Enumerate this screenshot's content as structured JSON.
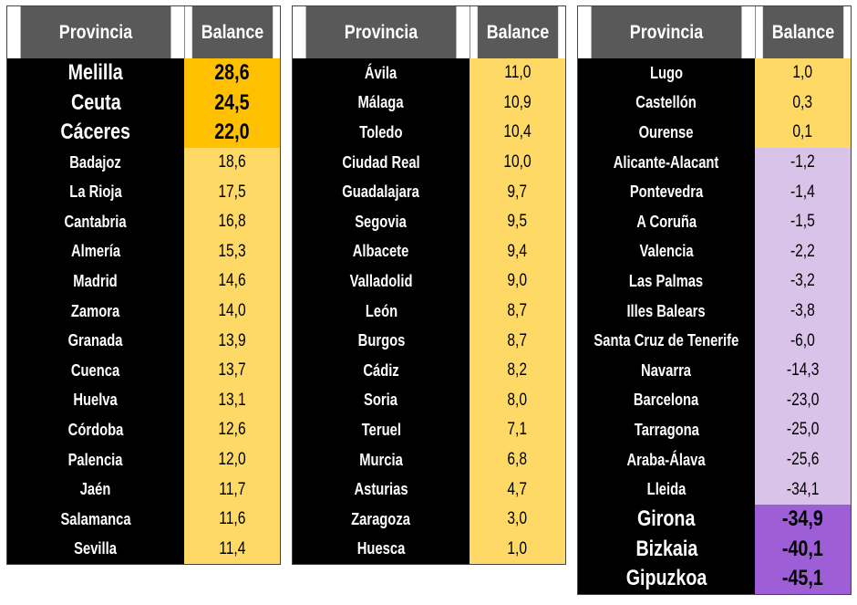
{
  "headers": {
    "province": "Provincia",
    "balance": "Balance"
  },
  "columns": [
    {
      "rows": [
        {
          "province": "Melilla",
          "balance": "28,6",
          "tone": "o",
          "bold": true
        },
        {
          "province": "Ceuta",
          "balance": "24,5",
          "tone": "o",
          "bold": true
        },
        {
          "province": "Cáceres",
          "balance": "22,0",
          "tone": "o",
          "bold": true
        },
        {
          "province": "Badajoz",
          "balance": "18,6",
          "tone": "y"
        },
        {
          "province": "La Rioja",
          "balance": "17,5",
          "tone": "y"
        },
        {
          "province": "Cantabria",
          "balance": "16,8",
          "tone": "y"
        },
        {
          "province": "Almería",
          "balance": "15,3",
          "tone": "y"
        },
        {
          "province": "Madrid",
          "balance": "14,6",
          "tone": "y"
        },
        {
          "province": "Zamora",
          "balance": "14,0",
          "tone": "y"
        },
        {
          "province": "Granada",
          "balance": "13,9",
          "tone": "y"
        },
        {
          "province": "Cuenca",
          "balance": "13,7",
          "tone": "y"
        },
        {
          "province": "Huelva",
          "balance": "13,1",
          "tone": "y"
        },
        {
          "province": "Córdoba",
          "balance": "12,6",
          "tone": "y"
        },
        {
          "province": "Palencia",
          "balance": "12,0",
          "tone": "y"
        },
        {
          "province": "Jaén",
          "balance": "11,7",
          "tone": "y"
        },
        {
          "province": "Salamanca",
          "balance": "11,6",
          "tone": "y"
        },
        {
          "province": "Sevilla",
          "balance": "11,4",
          "tone": "y"
        }
      ]
    },
    {
      "rows": [
        {
          "province": "Ávila",
          "balance": "11,0",
          "tone": "y"
        },
        {
          "province": "Málaga",
          "balance": "10,9",
          "tone": "y"
        },
        {
          "province": "Toledo",
          "balance": "10,4",
          "tone": "y"
        },
        {
          "province": "Ciudad Real",
          "balance": "10,0",
          "tone": "y"
        },
        {
          "province": "Guadalajara",
          "balance": "9,7",
          "tone": "y"
        },
        {
          "province": "Segovia",
          "balance": "9,5",
          "tone": "y"
        },
        {
          "province": "Albacete",
          "balance": "9,4",
          "tone": "y"
        },
        {
          "province": "Valladolid",
          "balance": "9,0",
          "tone": "y"
        },
        {
          "province": "León",
          "balance": "8,7",
          "tone": "y"
        },
        {
          "province": "Burgos",
          "balance": "8,7",
          "tone": "y"
        },
        {
          "province": "Cádiz",
          "balance": "8,2",
          "tone": "y"
        },
        {
          "province": "Soria",
          "balance": "8,0",
          "tone": "y"
        },
        {
          "province": "Teruel",
          "balance": "7,1",
          "tone": "y"
        },
        {
          "province": "Murcia",
          "balance": "6,8",
          "tone": "y"
        },
        {
          "province": "Asturias",
          "balance": "4,7",
          "tone": "y"
        },
        {
          "province": "Zaragoza",
          "balance": "3,0",
          "tone": "y"
        },
        {
          "province": "Huesca",
          "balance": "1,0",
          "tone": "y"
        }
      ]
    },
    {
      "rows": [
        {
          "province": "Lugo",
          "balance": "1,0",
          "tone": "y"
        },
        {
          "province": "Castellón",
          "balance": "0,3",
          "tone": "y"
        },
        {
          "province": "Ourense",
          "balance": "0,1",
          "tone": "y"
        },
        {
          "province": "Alicante-Alacant",
          "balance": "-1,2",
          "tone": "l"
        },
        {
          "province": "Pontevedra",
          "balance": "-1,4",
          "tone": "l"
        },
        {
          "province": "A Coruña",
          "balance": "-1,5",
          "tone": "l"
        },
        {
          "province": "Valencia",
          "balance": "-2,2",
          "tone": "l"
        },
        {
          "province": "Las Palmas",
          "balance": "-3,2",
          "tone": "l"
        },
        {
          "province": "Illes Balears",
          "balance": "-3,8",
          "tone": "l"
        },
        {
          "province": "Santa Cruz de Tenerife",
          "balance": "-6,0",
          "tone": "l"
        },
        {
          "province": "Navarra",
          "balance": "-14,3",
          "tone": "l"
        },
        {
          "province": "Barcelona",
          "balance": "-23,0",
          "tone": "l"
        },
        {
          "province": "Tarragona",
          "balance": "-25,0",
          "tone": "l"
        },
        {
          "province": "Araba-Álava",
          "balance": "-25,6",
          "tone": "l"
        },
        {
          "province": "Lleida",
          "balance": "-34,1",
          "tone": "l"
        },
        {
          "province": "Girona",
          "balance": "-34,9",
          "tone": "v",
          "bold": true
        },
        {
          "province": "Bizkaia",
          "balance": "-40,1",
          "tone": "v",
          "bold": true
        },
        {
          "province": "Gipuzkoa",
          "balance": "-45,1",
          "tone": "v",
          "bold": true
        }
      ]
    }
  ]
}
